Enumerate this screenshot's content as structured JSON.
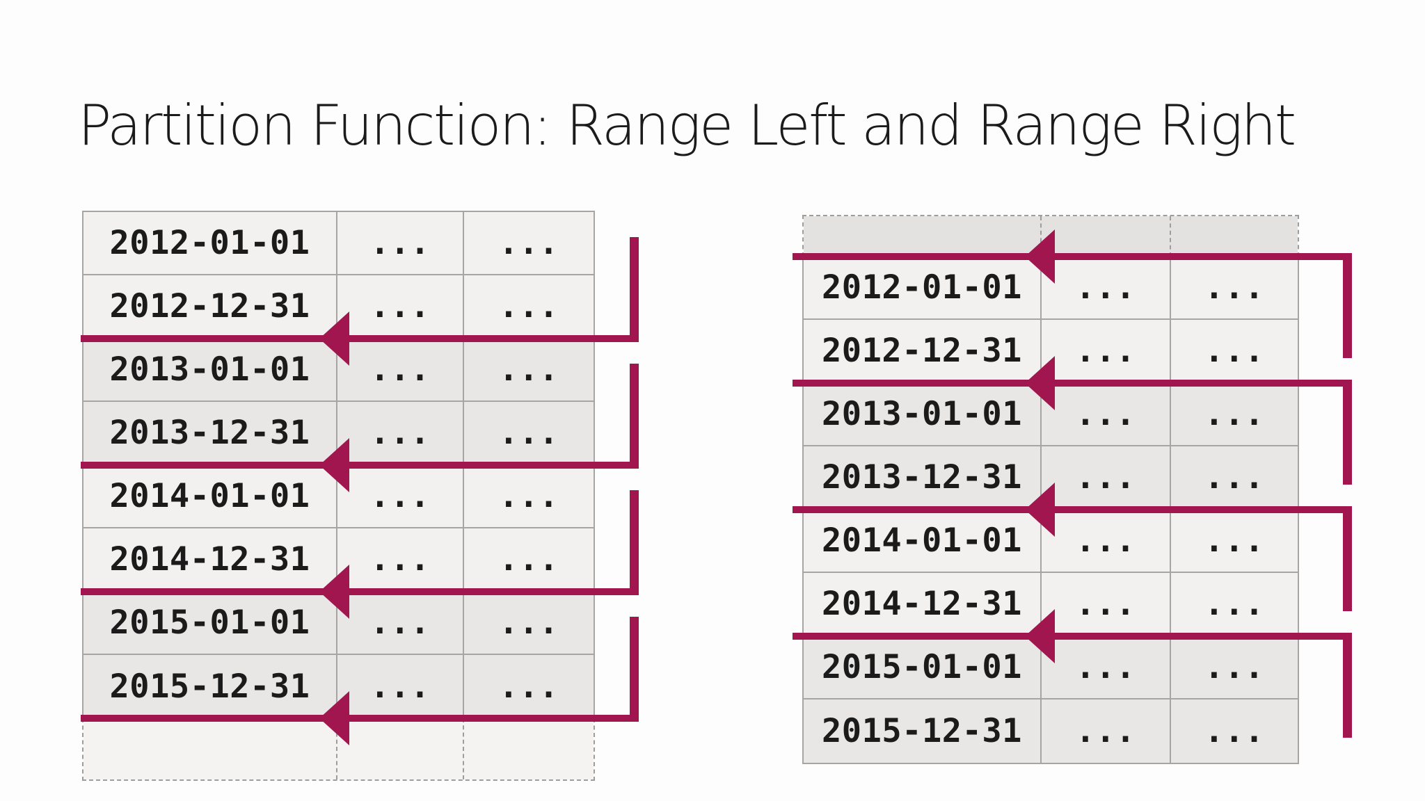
{
  "slide": {
    "title": "Partition Function: Range Left and Range Right"
  },
  "colors": {
    "accent_arrow": "#a1164f",
    "border_gray": "#a7a5a4",
    "dashed_border_gray": "#9d9d9d",
    "row_light": "#f2f1f0",
    "row_dark": "#e9e7e6",
    "left_trailing_empty_row": "#f4f3f2",
    "right_leading_empty_row": "#e4e2e1",
    "title_text": "#1b1b1b",
    "cell_text": "#1b1b1b",
    "background": "#fdfdfd"
  },
  "tables": {
    "range_left": {
      "rows": [
        {
          "cells": [
            "2012-01-01",
            "...",
            "..."
          ]
        },
        {
          "cells": [
            "2012-12-31",
            "...",
            "..."
          ]
        },
        {
          "cells": [
            "2013-01-01",
            "...",
            "..."
          ]
        },
        {
          "cells": [
            "2013-12-31",
            "...",
            "..."
          ]
        },
        {
          "cells": [
            "2014-01-01",
            "...",
            "..."
          ]
        },
        {
          "cells": [
            "2014-12-31",
            "...",
            "..."
          ]
        },
        {
          "cells": [
            "2015-01-01",
            "...",
            "..."
          ]
        },
        {
          "cells": [
            "2015-12-31",
            "...",
            "..."
          ]
        }
      ]
    },
    "range_right": {
      "rows": [
        {
          "cells": [
            "2012-01-01",
            "...",
            "..."
          ]
        },
        {
          "cells": [
            "2012-12-31",
            "...",
            "..."
          ]
        },
        {
          "cells": [
            "2013-01-01",
            "...",
            "..."
          ]
        },
        {
          "cells": [
            "2013-12-31",
            "...",
            "..."
          ]
        },
        {
          "cells": [
            "2014-01-01",
            "...",
            "..."
          ]
        },
        {
          "cells": [
            "2014-12-31",
            "...",
            "..."
          ]
        },
        {
          "cells": [
            "2015-01-01",
            "...",
            "..."
          ]
        },
        {
          "cells": [
            "2015-12-31",
            "...",
            "..."
          ]
        }
      ]
    }
  }
}
